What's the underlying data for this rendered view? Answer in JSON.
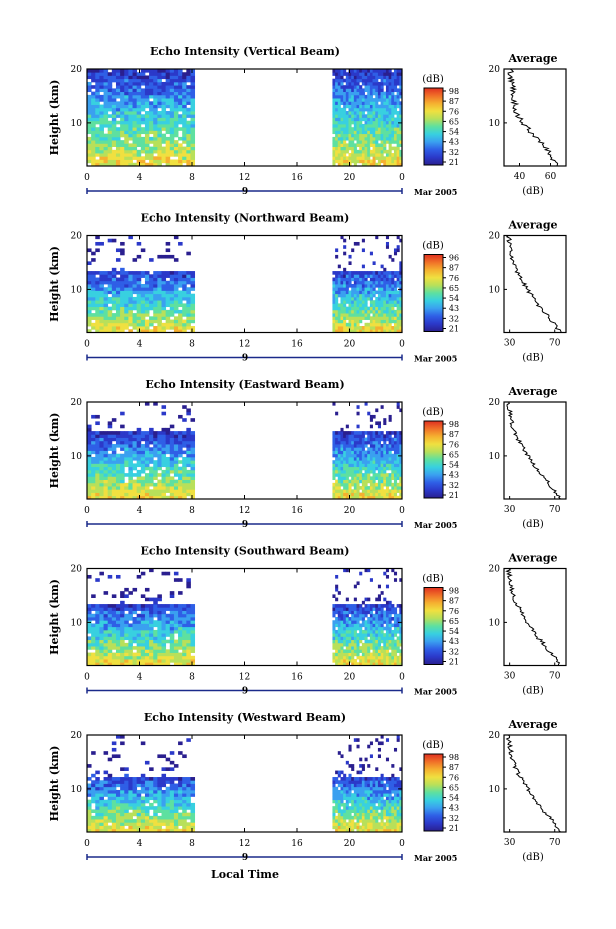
{
  "figure": {
    "shared_xlabel": "Local Time",
    "date_label": "9",
    "month_label": "Mar 2005"
  },
  "panel_common": {
    "ylabel": "Height (km)",
    "colorbar_title": "(dB)",
    "avg_title": "Average",
    "avg_xlabel": "(dB)",
    "x_ticks": [
      "0",
      "4",
      "8",
      "12",
      "16",
      "20",
      "0"
    ],
    "y_ticks": [
      "10",
      "20"
    ]
  },
  "colors": {
    "colormap": [
      "#2a1f8f",
      "#2b39c9",
      "#2f5fe6",
      "#3aa0f0",
      "#38d0e0",
      "#5ee0a0",
      "#b8e05a",
      "#f0e040",
      "#f5b030",
      "#f07028",
      "#e03020"
    ],
    "data_gap": "#ffffff"
  },
  "chart_data": [
    {
      "type": "heatmap",
      "title": "Echo Intensity (Vertical Beam)",
      "xlabel": "Local Time",
      "ylabel": "Height (km)",
      "xlim": [
        0,
        24
      ],
      "ylim": [
        2,
        20
      ],
      "colorbar_label": "(dB)",
      "colorbar_ticks": [
        "98",
        "87",
        "76",
        "65",
        "54",
        "43",
        "32",
        "21"
      ],
      "data_segments": [
        [
          0,
          8.2
        ],
        [
          18.7,
          24
        ]
      ],
      "top_height_km": 20,
      "profile": {
        "title": "Average",
        "xlabel": "(dB)",
        "x_ticks": [
          "40",
          "60"
        ],
        "xlim": [
          30,
          70
        ],
        "heights_km": [
          2,
          4,
          6,
          8,
          10,
          12,
          14,
          16,
          18,
          20
        ],
        "values_db": [
          65,
          60,
          55,
          48,
          42,
          38,
          37,
          36,
          35,
          34
        ]
      }
    },
    {
      "type": "heatmap",
      "title": "Echo Intensity (Northward Beam)",
      "xlabel": "Local Time",
      "ylabel": "Height (km)",
      "xlim": [
        0,
        24
      ],
      "ylim": [
        2,
        20
      ],
      "colorbar_label": "(dB)",
      "colorbar_ticks": [
        "96",
        "87",
        "76",
        "65",
        "54",
        "43",
        "32",
        "21"
      ],
      "data_segments": [
        [
          0,
          8.2
        ],
        [
          18.7,
          24
        ]
      ],
      "top_height_km": 13,
      "profile": {
        "title": "Average",
        "xlabel": "(dB)",
        "x_ticks": [
          "30",
          "70"
        ],
        "xlim": [
          25,
          80
        ],
        "heights_km": [
          2,
          4,
          6,
          8,
          10,
          12,
          14,
          16,
          18,
          20
        ],
        "values_db": [
          75,
          68,
          60,
          52,
          46,
          40,
          35,
          32,
          30,
          29
        ]
      }
    },
    {
      "type": "heatmap",
      "title": "Echo Intensity (Eastward Beam)",
      "xlabel": "Local Time",
      "ylabel": "Height (km)",
      "xlim": [
        0,
        24
      ],
      "ylim": [
        2,
        20
      ],
      "colorbar_label": "(dB)",
      "colorbar_ticks": [
        "98",
        "87",
        "76",
        "65",
        "54",
        "43",
        "32",
        "21"
      ],
      "data_segments": [
        [
          0,
          8.2
        ],
        [
          18.7,
          24
        ]
      ],
      "top_height_km": 14,
      "profile": {
        "title": "Average",
        "xlabel": "(dB)",
        "x_ticks": [
          "30",
          "70"
        ],
        "xlim": [
          25,
          80
        ],
        "heights_km": [
          2,
          4,
          6,
          8,
          10,
          12,
          14,
          16,
          18,
          20
        ],
        "values_db": [
          75,
          68,
          60,
          52,
          46,
          40,
          35,
          32,
          30,
          29
        ]
      }
    },
    {
      "type": "heatmap",
      "title": "Echo Intensity (Southward Beam)",
      "xlabel": "Local Time",
      "ylabel": "Height (km)",
      "xlim": [
        0,
        24
      ],
      "ylim": [
        2,
        20
      ],
      "colorbar_label": "(dB)",
      "colorbar_ticks": [
        "98",
        "87",
        "76",
        "65",
        "54",
        "43",
        "32",
        "21"
      ],
      "data_segments": [
        [
          0,
          8.2
        ],
        [
          18.7,
          24
        ]
      ],
      "top_height_km": 13,
      "profile": {
        "title": "Average",
        "xlabel": "(dB)",
        "x_ticks": [
          "30",
          "70"
        ],
        "xlim": [
          25,
          80
        ],
        "heights_km": [
          2,
          4,
          6,
          8,
          10,
          12,
          14,
          16,
          18,
          20
        ],
        "values_db": [
          75,
          68,
          60,
          52,
          46,
          40,
          35,
          32,
          30,
          29
        ]
      }
    },
    {
      "type": "heatmap",
      "title": "Echo Intensity (Westward Beam)",
      "xlabel": "Local Time",
      "ylabel": "Height (km)",
      "xlim": [
        0,
        24
      ],
      "ylim": [
        2,
        20
      ],
      "colorbar_label": "(dB)",
      "colorbar_ticks": [
        "98",
        "87",
        "76",
        "65",
        "54",
        "43",
        "32",
        "21"
      ],
      "data_segments": [
        [
          0,
          8.2
        ],
        [
          18.7,
          24
        ]
      ],
      "top_height_km": 12,
      "profile": {
        "title": "Average",
        "xlabel": "(dB)",
        "x_ticks": [
          "30",
          "70"
        ],
        "xlim": [
          25,
          80
        ],
        "heights_km": [
          2,
          4,
          6,
          8,
          10,
          12,
          14,
          16,
          18,
          20
        ],
        "values_db": [
          75,
          68,
          60,
          52,
          46,
          40,
          35,
          32,
          30,
          29
        ]
      }
    }
  ]
}
